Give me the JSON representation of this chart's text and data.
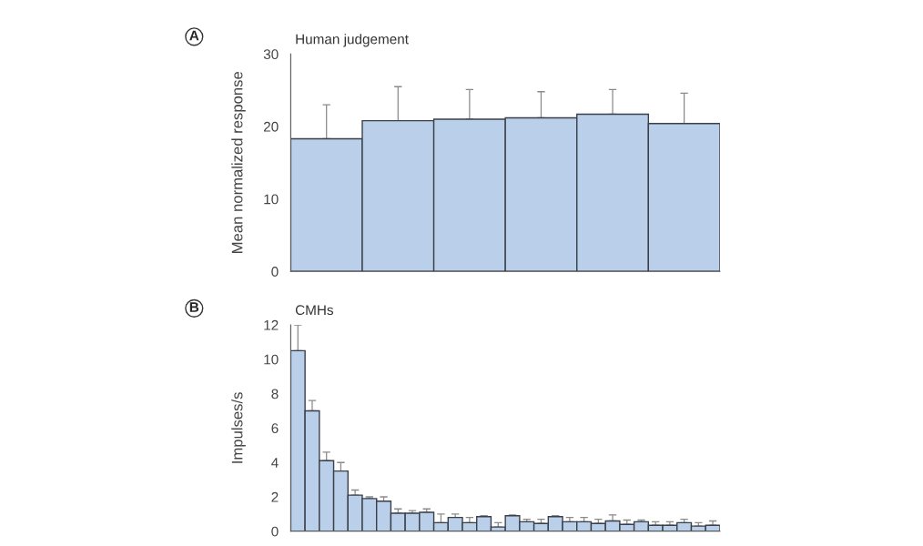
{
  "chart_data": [
    {
      "type": "bar",
      "title": "Human judgement",
      "ylabel": "Mean normalized response",
      "annotations": [
        "A"
      ],
      "categories": [
        null,
        null,
        null,
        null,
        null,
        null
      ],
      "values": [
        18.3,
        20.8,
        21.0,
        21.2,
        21.7,
        20.4
      ],
      "errors": [
        [
          18.3,
          23.0
        ],
        [
          20.8,
          25.5
        ],
        [
          21.0,
          25.1
        ],
        [
          21.2,
          24.8
        ],
        [
          21.7,
          25.1
        ],
        [
          20.4,
          24.6
        ]
      ],
      "color": "#b9cfea",
      "ylim": [
        0,
        30
      ],
      "yticks": [
        0,
        10,
        20,
        30
      ],
      "tick_labels": "y"
    },
    {
      "type": "bar",
      "title": "CMHs",
      "ylabel": "Impulses/s",
      "annotations": [
        "B"
      ],
      "categories": [
        null,
        null,
        null,
        null,
        null,
        null,
        null,
        null,
        null,
        null,
        null,
        null,
        null,
        null,
        null,
        null,
        null,
        null,
        null,
        null,
        null,
        null,
        null,
        null,
        null,
        null,
        null,
        null,
        null,
        null
      ],
      "values": [
        10.5,
        7.0,
        4.1,
        3.5,
        2.1,
        1.9,
        1.75,
        1.05,
        1.05,
        1.1,
        0.5,
        0.8,
        0.5,
        0.85,
        0.25,
        0.9,
        0.55,
        0.45,
        0.85,
        0.55,
        0.55,
        0.45,
        0.6,
        0.4,
        0.55,
        0.35,
        0.35,
        0.5,
        0.3,
        0.35
      ],
      "errors": [
        [
          10.5,
          12.0
        ],
        [
          7.0,
          7.6
        ],
        [
          4.1,
          4.6
        ],
        [
          3.5,
          4.0
        ],
        [
          2.1,
          2.4
        ],
        [
          1.9,
          2.0
        ],
        [
          1.75,
          2.0
        ],
        [
          1.05,
          1.3
        ],
        [
          1.05,
          1.2
        ],
        [
          1.1,
          1.3
        ],
        [
          0.5,
          1.0
        ],
        [
          0.8,
          1.0
        ],
        [
          0.5,
          0.8
        ],
        [
          0.85,
          0.9
        ],
        [
          0.25,
          0.5
        ],
        [
          0.9,
          0.95
        ],
        [
          0.55,
          0.7
        ],
        [
          0.45,
          0.7
        ],
        [
          0.85,
          0.9
        ],
        [
          0.55,
          0.8
        ],
        [
          0.55,
          0.8
        ],
        [
          0.45,
          0.7
        ],
        [
          0.6,
          0.95
        ],
        [
          0.4,
          0.65
        ],
        [
          0.55,
          0.65
        ],
        [
          0.35,
          0.55
        ],
        [
          0.35,
          0.55
        ],
        [
          0.5,
          0.7
        ],
        [
          0.3,
          0.5
        ],
        [
          0.35,
          0.6
        ]
      ],
      "color": "#b9cfea",
      "ylim": [
        0,
        12
      ],
      "yticks": [
        0,
        2,
        4,
        6,
        8,
        10,
        12
      ],
      "tick_labels": "y"
    }
  ]
}
